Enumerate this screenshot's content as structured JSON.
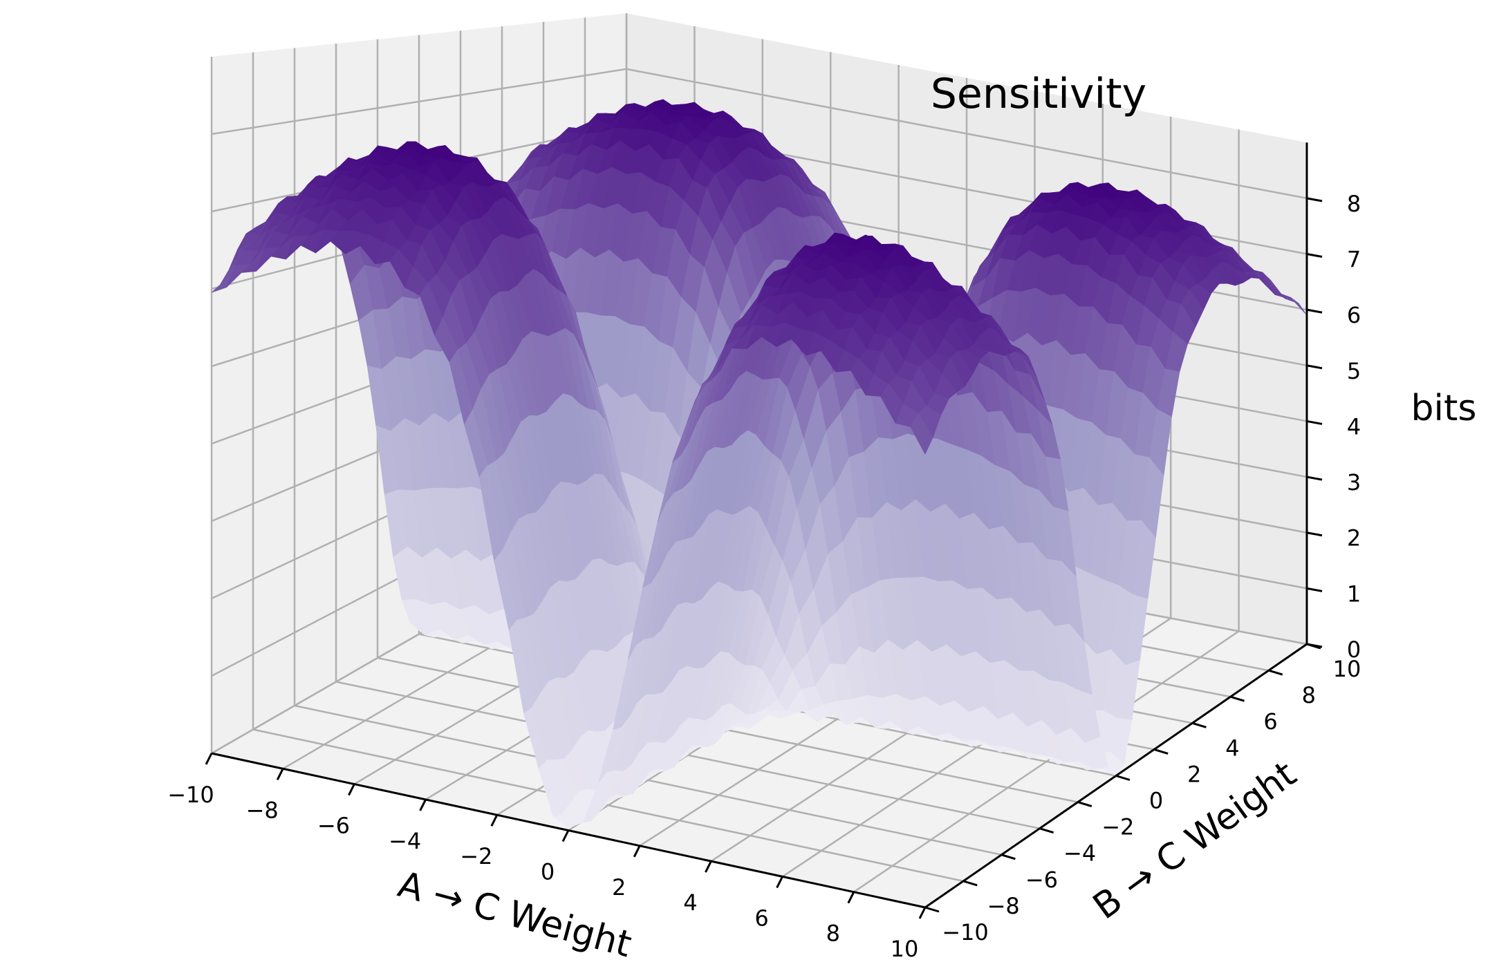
{
  "chart_data": {
    "type": "surface3d",
    "title": "Sensitivity",
    "xlabel": "A → C Weight",
    "ylabel": "B → C Weight",
    "zlabel": "bits",
    "x_ticks": [
      "−10",
      "−8",
      "−6",
      "−4",
      "−2",
      "0",
      "2",
      "4",
      "6",
      "8",
      "10"
    ],
    "y_ticks": [
      "−10",
      "−8",
      "−6",
      "−4",
      "−2",
      "0",
      "2",
      "4",
      "6",
      "8",
      "10"
    ],
    "z_ticks": [
      "0",
      "1",
      "2",
      "3",
      "4",
      "5",
      "6",
      "7",
      "8"
    ],
    "xlim": [
      -10,
      10
    ],
    "ylim": [
      -10,
      10
    ],
    "zlim": [
      0,
      9
    ],
    "grid": true,
    "colormap": "Purples",
    "surface_shape": "four-lobed: plateau near 8 bits in each quadrant (|x|,|y| ≈ 6), falling toward ~0 bits along the x = 0 and y = 0 axes, with a sharp dip at the origin",
    "peaks": [
      {
        "x": -6,
        "y": -6,
        "z": 8
      },
      {
        "x": 6,
        "y": -6,
        "z": 8
      },
      {
        "x": -6,
        "y": 6,
        "z": 8
      },
      {
        "x": 6,
        "y": 6,
        "z": 8
      }
    ],
    "min_at": {
      "x": 0,
      "y": 0,
      "z": 0
    }
  }
}
